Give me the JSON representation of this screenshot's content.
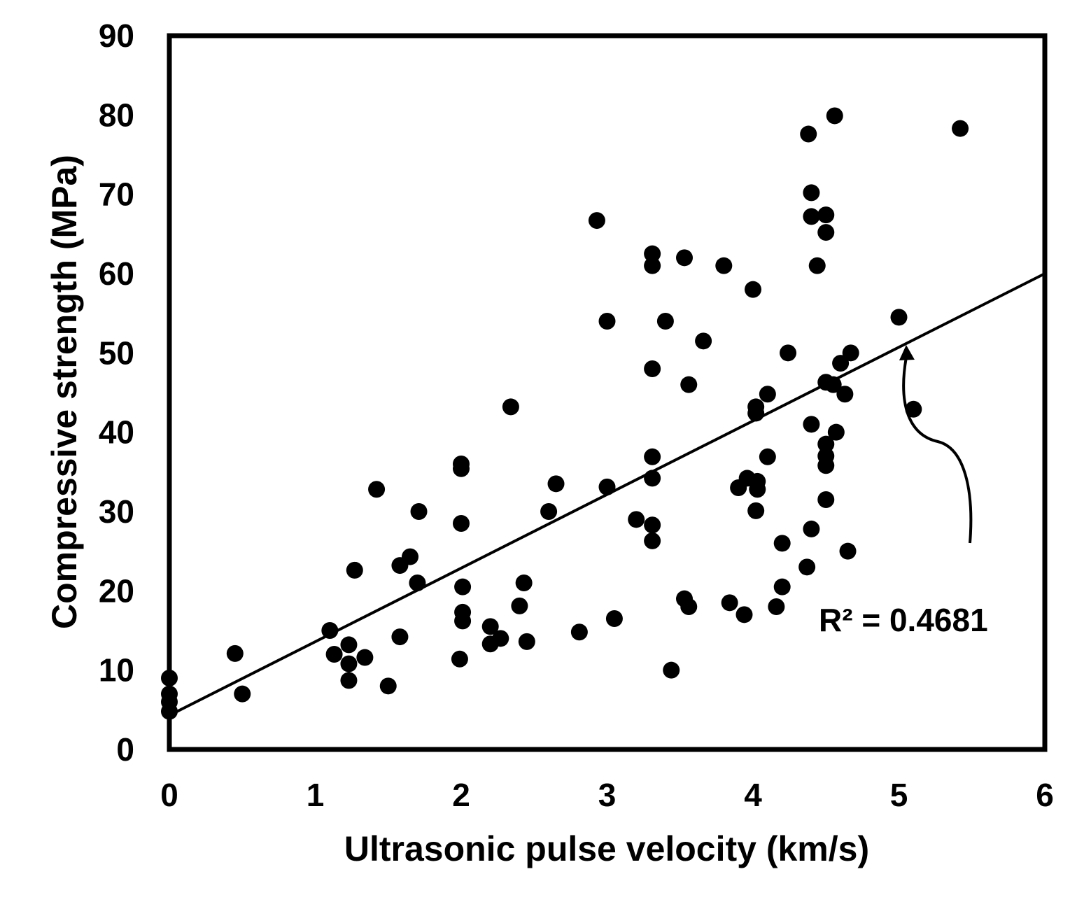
{
  "chart_data": {
    "type": "scatter",
    "xlabel": "Ultrasonic pulse velocity (km/s)",
    "ylabel": "Compressive strength (MPa)",
    "xlim": [
      0,
      6
    ],
    "ylim": [
      0,
      90
    ],
    "x_ticks": [
      "0",
      "1",
      "2",
      "3",
      "4",
      "5",
      "6"
    ],
    "y_ticks": [
      "0",
      "10",
      "20",
      "30",
      "40",
      "50",
      "60",
      "70",
      "80",
      "90"
    ],
    "grid": false,
    "legend": "none",
    "marker_color": "#000000",
    "trendline": {
      "type": "linear",
      "x": [
        0,
        6
      ],
      "y": [
        4.3,
        60.0
      ]
    },
    "annotation": {
      "text": "R² = 0.4681",
      "arrow_points_to": [
        5.05,
        51.0
      ]
    },
    "points": [
      [
        0,
        9.0
      ],
      [
        0,
        7.0
      ],
      [
        0,
        6.0
      ],
      [
        0,
        4.8
      ],
      [
        0.45,
        12.1
      ],
      [
        0.5,
        7.0
      ],
      [
        1.1,
        15.0
      ],
      [
        1.13,
        12.0
      ],
      [
        1.23,
        13.2
      ],
      [
        1.23,
        10.8
      ],
      [
        1.23,
        8.7
      ],
      [
        1.27,
        22.6
      ],
      [
        1.34,
        11.6
      ],
      [
        1.42,
        32.8
      ],
      [
        1.5,
        8.0
      ],
      [
        1.58,
        23.2
      ],
      [
        1.58,
        14.2
      ],
      [
        1.65,
        24.3
      ],
      [
        1.7,
        21.0
      ],
      [
        1.71,
        30.0
      ],
      [
        2.0,
        36.0
      ],
      [
        2.0,
        35.4
      ],
      [
        2.0,
        28.5
      ],
      [
        2.01,
        20.5
      ],
      [
        2.01,
        17.3
      ],
      [
        2.01,
        16.2
      ],
      [
        1.99,
        11.4
      ],
      [
        2.2,
        15.5
      ],
      [
        2.2,
        13.3
      ],
      [
        2.27,
        14.0
      ],
      [
        2.34,
        43.2
      ],
      [
        2.4,
        18.1
      ],
      [
        2.43,
        21.0
      ],
      [
        2.45,
        13.6
      ],
      [
        2.6,
        30.0
      ],
      [
        2.65,
        33.5
      ],
      [
        2.81,
        14.8
      ],
      [
        2.93,
        66.7
      ],
      [
        3.0,
        54.0
      ],
      [
        3.0,
        33.1
      ],
      [
        3.05,
        16.5
      ],
      [
        3.2,
        29.0
      ],
      [
        3.31,
        62.5
      ],
      [
        3.31,
        61.0
      ],
      [
        3.31,
        48.0
      ],
      [
        3.31,
        36.9
      ],
      [
        3.31,
        34.2
      ],
      [
        3.31,
        28.3
      ],
      [
        3.31,
        26.3
      ],
      [
        3.4,
        54.0
      ],
      [
        3.44,
        10.0
      ],
      [
        3.53,
        62.0
      ],
      [
        3.53,
        19.0
      ],
      [
        3.56,
        46.0
      ],
      [
        3.56,
        18.0
      ],
      [
        3.66,
        51.5
      ],
      [
        3.8,
        61.0
      ],
      [
        3.84,
        18.5
      ],
      [
        3.9,
        33.0
      ],
      [
        3.94,
        17.0
      ],
      [
        3.96,
        34.2
      ],
      [
        4.0,
        58.0
      ],
      [
        4.02,
        43.2
      ],
      [
        4.02,
        42.4
      ],
      [
        4.03,
        33.8
      ],
      [
        4.03,
        32.8
      ],
      [
        4.02,
        30.1
      ],
      [
        4.1,
        44.8
      ],
      [
        4.1,
        36.9
      ],
      [
        4.16,
        18.0
      ],
      [
        4.2,
        26.0
      ],
      [
        4.2,
        20.5
      ],
      [
        4.24,
        50.0
      ],
      [
        4.37,
        23.0
      ],
      [
        4.38,
        77.6
      ],
      [
        4.4,
        70.2
      ],
      [
        4.4,
        67.2
      ],
      [
        4.4,
        41.0
      ],
      [
        4.4,
        27.8
      ],
      [
        4.44,
        61.0
      ],
      [
        4.5,
        67.4
      ],
      [
        4.5,
        65.2
      ],
      [
        4.5,
        46.3
      ],
      [
        4.5,
        38.5
      ],
      [
        4.5,
        37.0
      ],
      [
        4.5,
        35.8
      ],
      [
        4.5,
        31.5
      ],
      [
        4.55,
        46.0
      ],
      [
        4.56,
        79.9
      ],
      [
        4.57,
        40.0
      ],
      [
        4.6,
        48.7
      ],
      [
        4.63,
        44.8
      ],
      [
        4.65,
        25.0
      ],
      [
        4.67,
        50.0
      ],
      [
        5.0,
        54.5
      ],
      [
        5.1,
        42.9
      ],
      [
        5.42,
        78.3
      ]
    ]
  }
}
